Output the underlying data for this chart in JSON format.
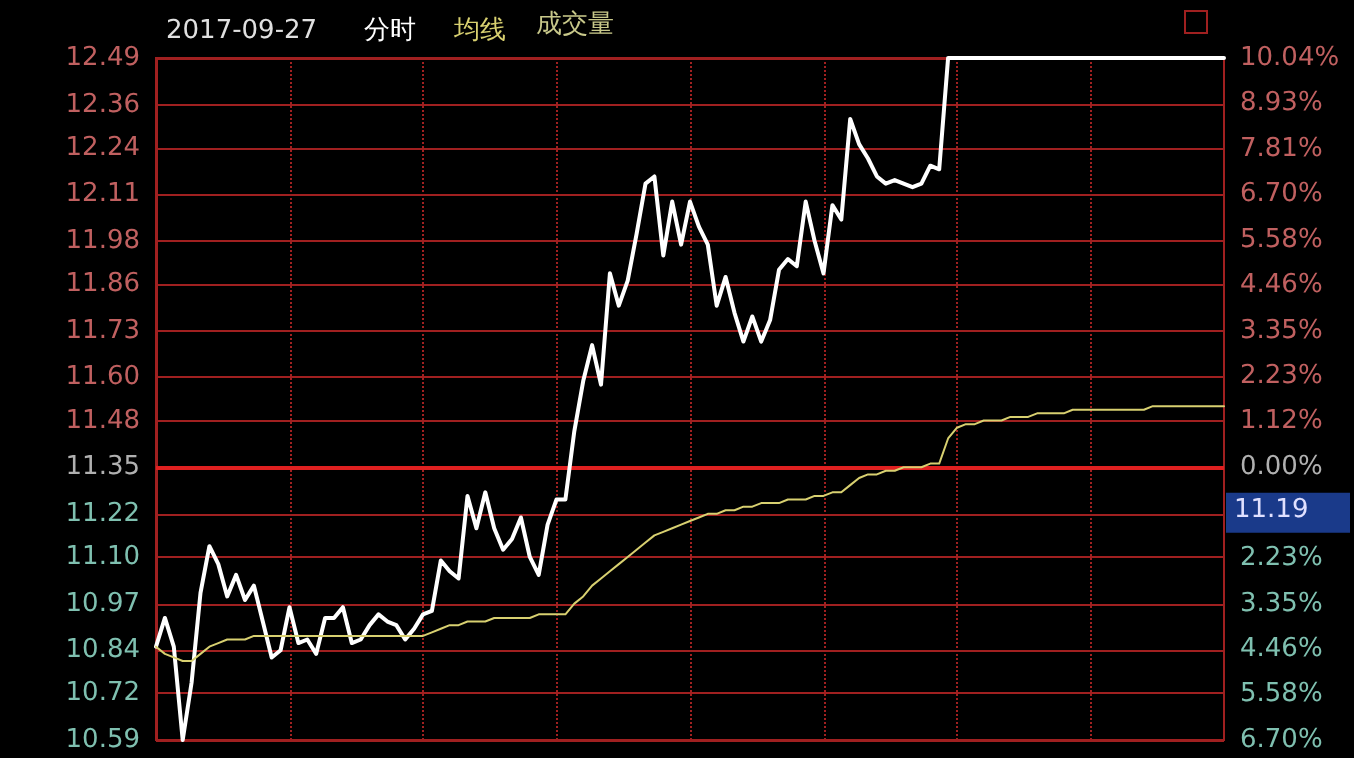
{
  "chart_data": {
    "type": "line",
    "title": "2017-09-27",
    "legend": "top left",
    "grid": true,
    "line_style": "solid",
    "tick_labels": "y",
    "annotations": [
      "成交量",
      "11.19"
    ],
    "categories": [
      null,
      null,
      null,
      null,
      null,
      null,
      null,
      null,
      null,
      null,
      null,
      null,
      null,
      null,
      null,
      null,
      null,
      null,
      null,
      null,
      null,
      null,
      null,
      null,
      null,
      null,
      null,
      null,
      null,
      null,
      null,
      null,
      null,
      null,
      null,
      null,
      null,
      null,
      null,
      null,
      null,
      null,
      null,
      null,
      null,
      null,
      null,
      null,
      null,
      null,
      null,
      null,
      null,
      null,
      null,
      null,
      null,
      null,
      null,
      null,
      null,
      null,
      null,
      null,
      null,
      null,
      null,
      null,
      null,
      null,
      null,
      null,
      null,
      null,
      null,
      null,
      null,
      null,
      null,
      null,
      null,
      null,
      null,
      null,
      null,
      null,
      null,
      null,
      null,
      null,
      null,
      null,
      null,
      null,
      null,
      null,
      null,
      null,
      null,
      null,
      null,
      null,
      null,
      null,
      null,
      null,
      null,
      null,
      null,
      null,
      null,
      null,
      null,
      null,
      null,
      null,
      null,
      null,
      null,
      null,
      null
    ],
    "series": [
      {
        "name": "分时",
        "color": "#ffffff",
        "values": [
          10.85,
          10.93,
          10.85,
          10.59,
          10.75,
          11.0,
          11.13,
          11.08,
          10.99,
          11.05,
          10.98,
          11.02,
          10.92,
          10.82,
          10.84,
          10.96,
          10.86,
          10.87,
          10.83,
          10.93,
          10.93,
          10.96,
          10.86,
          10.87,
          10.91,
          10.94,
          10.92,
          10.91,
          10.87,
          10.9,
          10.94,
          10.95,
          11.09,
          11.06,
          11.04,
          11.27,
          11.18,
          11.28,
          11.18,
          11.12,
          11.15,
          11.21,
          11.1,
          11.05,
          11.19,
          11.26,
          11.26,
          11.45,
          11.59,
          11.69,
          11.58,
          11.89,
          11.8,
          11.87,
          12.0,
          12.14,
          12.16,
          11.94,
          12.09,
          11.97,
          12.09,
          12.02,
          11.97,
          11.8,
          11.88,
          11.78,
          11.7,
          11.77,
          11.7,
          11.76,
          11.9,
          11.93,
          11.91,
          12.09,
          11.98,
          11.89,
          12.08,
          12.04,
          12.32,
          12.25,
          12.21,
          12.16,
          12.14,
          12.15,
          12.14,
          12.13,
          12.14,
          12.19,
          12.18,
          12.49,
          12.49,
          12.49,
          12.49,
          12.49,
          12.49,
          12.49,
          12.49,
          12.49,
          12.49,
          12.49,
          12.49,
          12.49,
          12.49,
          12.49,
          12.49,
          12.49,
          12.49,
          12.49,
          12.49,
          12.49,
          12.49,
          12.49,
          12.49,
          12.49,
          12.49,
          12.49,
          12.49,
          12.49,
          12.49,
          12.49,
          12.49
        ]
      },
      {
        "name": "均线",
        "color": "#d8d070",
        "values": [
          10.85,
          10.83,
          10.82,
          10.81,
          10.81,
          10.83,
          10.85,
          10.86,
          10.87,
          10.87,
          10.87,
          10.88,
          10.88,
          10.88,
          10.88,
          10.88,
          10.88,
          10.88,
          10.88,
          10.88,
          10.88,
          10.88,
          10.88,
          10.88,
          10.88,
          10.88,
          10.88,
          10.88,
          10.88,
          10.88,
          10.88,
          10.89,
          10.9,
          10.91,
          10.91,
          10.92,
          10.92,
          10.92,
          10.93,
          10.93,
          10.93,
          10.93,
          10.93,
          10.94,
          10.94,
          10.94,
          10.94,
          10.97,
          10.99,
          11.02,
          11.04,
          11.06,
          11.08,
          11.1,
          11.12,
          11.14,
          11.16,
          11.17,
          11.18,
          11.19,
          11.2,
          11.21,
          11.22,
          11.22,
          11.23,
          11.23,
          11.24,
          11.24,
          11.25,
          11.25,
          11.25,
          11.26,
          11.26,
          11.26,
          11.27,
          11.27,
          11.28,
          11.28,
          11.3,
          11.32,
          11.33,
          11.33,
          11.34,
          11.34,
          11.35,
          11.35,
          11.35,
          11.36,
          11.36,
          11.43,
          11.46,
          11.47,
          11.47,
          11.48,
          11.48,
          11.48,
          11.49,
          11.49,
          11.49,
          11.5,
          11.5,
          11.5,
          11.5,
          11.51,
          11.51,
          11.51,
          11.51,
          11.51,
          11.51,
          11.51,
          11.51,
          11.51,
          11.52,
          11.52,
          11.52,
          11.52,
          11.52,
          11.52,
          11.52,
          11.52,
          11.52
        ]
      }
    ],
    "ylim": [
      10.59,
      12.49
    ],
    "yticks": [
      10.59,
      10.72,
      10.84,
      10.97,
      {
        "value": 11.1,
        "label": "11.10"
      },
      11.22,
      11.35,
      11.48,
      {
        "value": 11.6,
        "label": "11.60"
      },
      11.73,
      11.86,
      11.98,
      12.11,
      12.24,
      12.36,
      12.49
    ],
    "y2lim": [
      -6.7,
      10.04
    ],
    "y2ticks": [
      {
        "value": 10.04,
        "label": "10.04%"
      },
      {
        "value": 8.93,
        "label": "8.93%"
      },
      {
        "value": 7.81,
        "label": "7.81%"
      },
      {
        "value": 6.7,
        "label": "6.70%"
      },
      {
        "value": 5.58,
        "label": "5.58%"
      },
      {
        "value": 4.46,
        "label": "4.46%"
      },
      {
        "value": 3.35,
        "label": "3.35%"
      },
      {
        "value": 2.23,
        "label": "2.23%"
      },
      {
        "value": 1.12,
        "label": "1.12%"
      },
      {
        "value": 0,
        "label": "0.00%"
      },
      {
        "value": -1.12,
        "label": null
      },
      {
        "value": -2.23,
        "label": "2.23%"
      },
      {
        "value": -3.35,
        "label": "3.35%"
      },
      {
        "value": -4.46,
        "label": "4.46%"
      },
      {
        "value": -5.58,
        "label": "5.58%"
      },
      {
        "value": -6.7,
        "label": "6.70%"
      }
    ],
    "ref_lines": [
      {
        "axis": "y",
        "value": 11.35,
        "color": "#e02020"
      }
    ]
  }
}
